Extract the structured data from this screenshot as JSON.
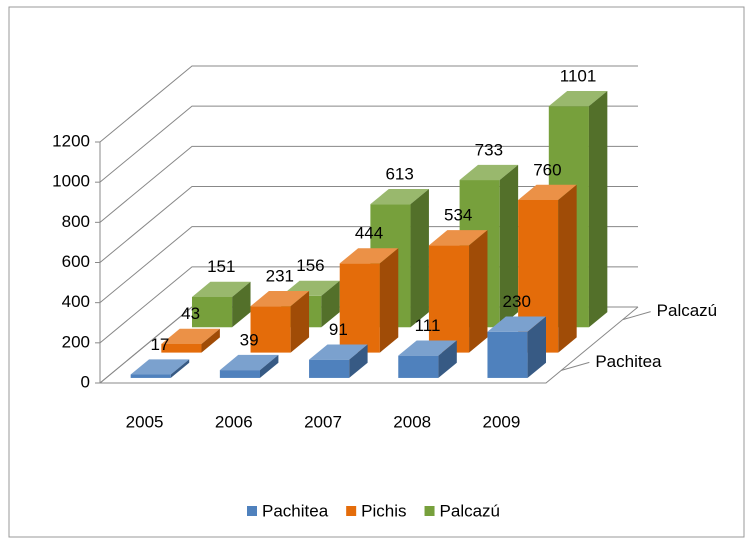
{
  "chart_data": {
    "type": "bar3d",
    "categories": [
      "2005",
      "2006",
      "2007",
      "2008",
      "2009"
    ],
    "series": [
      {
        "name": "Pachitea",
        "color": "#4f81bd",
        "values": [
          17,
          39,
          91,
          111,
          230
        ]
      },
      {
        "name": "Pichis",
        "color": "#e46c0a",
        "values": [
          43,
          231,
          444,
          534,
          760
        ]
      },
      {
        "name": "Palcazú",
        "color": "#77a03c",
        "values": [
          151,
          156,
          613,
          733,
          1101
        ]
      }
    ],
    "ylim": [
      0,
      1200
    ],
    "yticks": [
      0,
      200,
      400,
      600,
      800,
      1000,
      1200
    ],
    "grid": true,
    "legend": "bottom"
  }
}
